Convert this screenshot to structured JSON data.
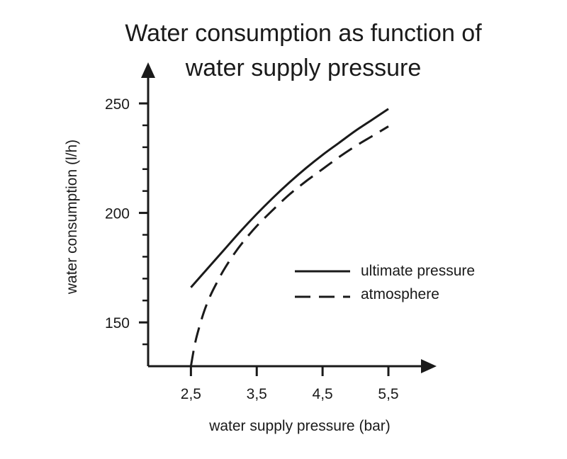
{
  "chart_data": {
    "type": "line",
    "title_lines": [
      "Water consumption as function of",
      "water supply pressure"
    ],
    "xlabel": "water supply pressure (bar)",
    "ylabel": "water consumption (l/h)",
    "x_ticks": [
      "2,5",
      "3,5",
      "4,5",
      "5,5"
    ],
    "x_tick_values": [
      2.5,
      3.5,
      4.5,
      5.5
    ],
    "y_ticks": [
      "150",
      "200",
      "250"
    ],
    "y_tick_values": [
      150,
      200,
      250
    ],
    "xlim": [
      1.85,
      5.5
    ],
    "ylim": [
      130,
      250
    ],
    "grid": false,
    "legend_position": "right",
    "series": [
      {
        "name": "ultimate pressure",
        "line_style": "solid",
        "x": [
          2.5,
          2.75,
          3.0,
          3.25,
          3.5,
          3.75,
          4.0,
          4.25,
          4.5,
          4.75,
          5.0,
          5.25,
          5.5
        ],
        "y": [
          166,
          174.5,
          183,
          191.5,
          199.5,
          207,
          214,
          220.5,
          226.5,
          232,
          237.5,
          242.5,
          247.5
        ]
      },
      {
        "name": "atmosphere",
        "line_style": "dashed",
        "x": [
          2.5,
          2.55,
          2.6,
          2.7,
          2.8,
          2.9,
          3.0,
          3.15,
          3.3,
          3.5,
          3.75,
          4.0,
          4.25,
          4.5,
          4.75,
          5.0,
          5.25,
          5.5
        ],
        "y": [
          130,
          138.5,
          145,
          155,
          162.5,
          168.5,
          174,
          181,
          187,
          194,
          201.5,
          208.5,
          214.5,
          220,
          225.5,
          230.5,
          235,
          239.5
        ]
      }
    ]
  },
  "colors": {
    "ink": "#1a1a1a",
    "background": "#ffffff"
  }
}
